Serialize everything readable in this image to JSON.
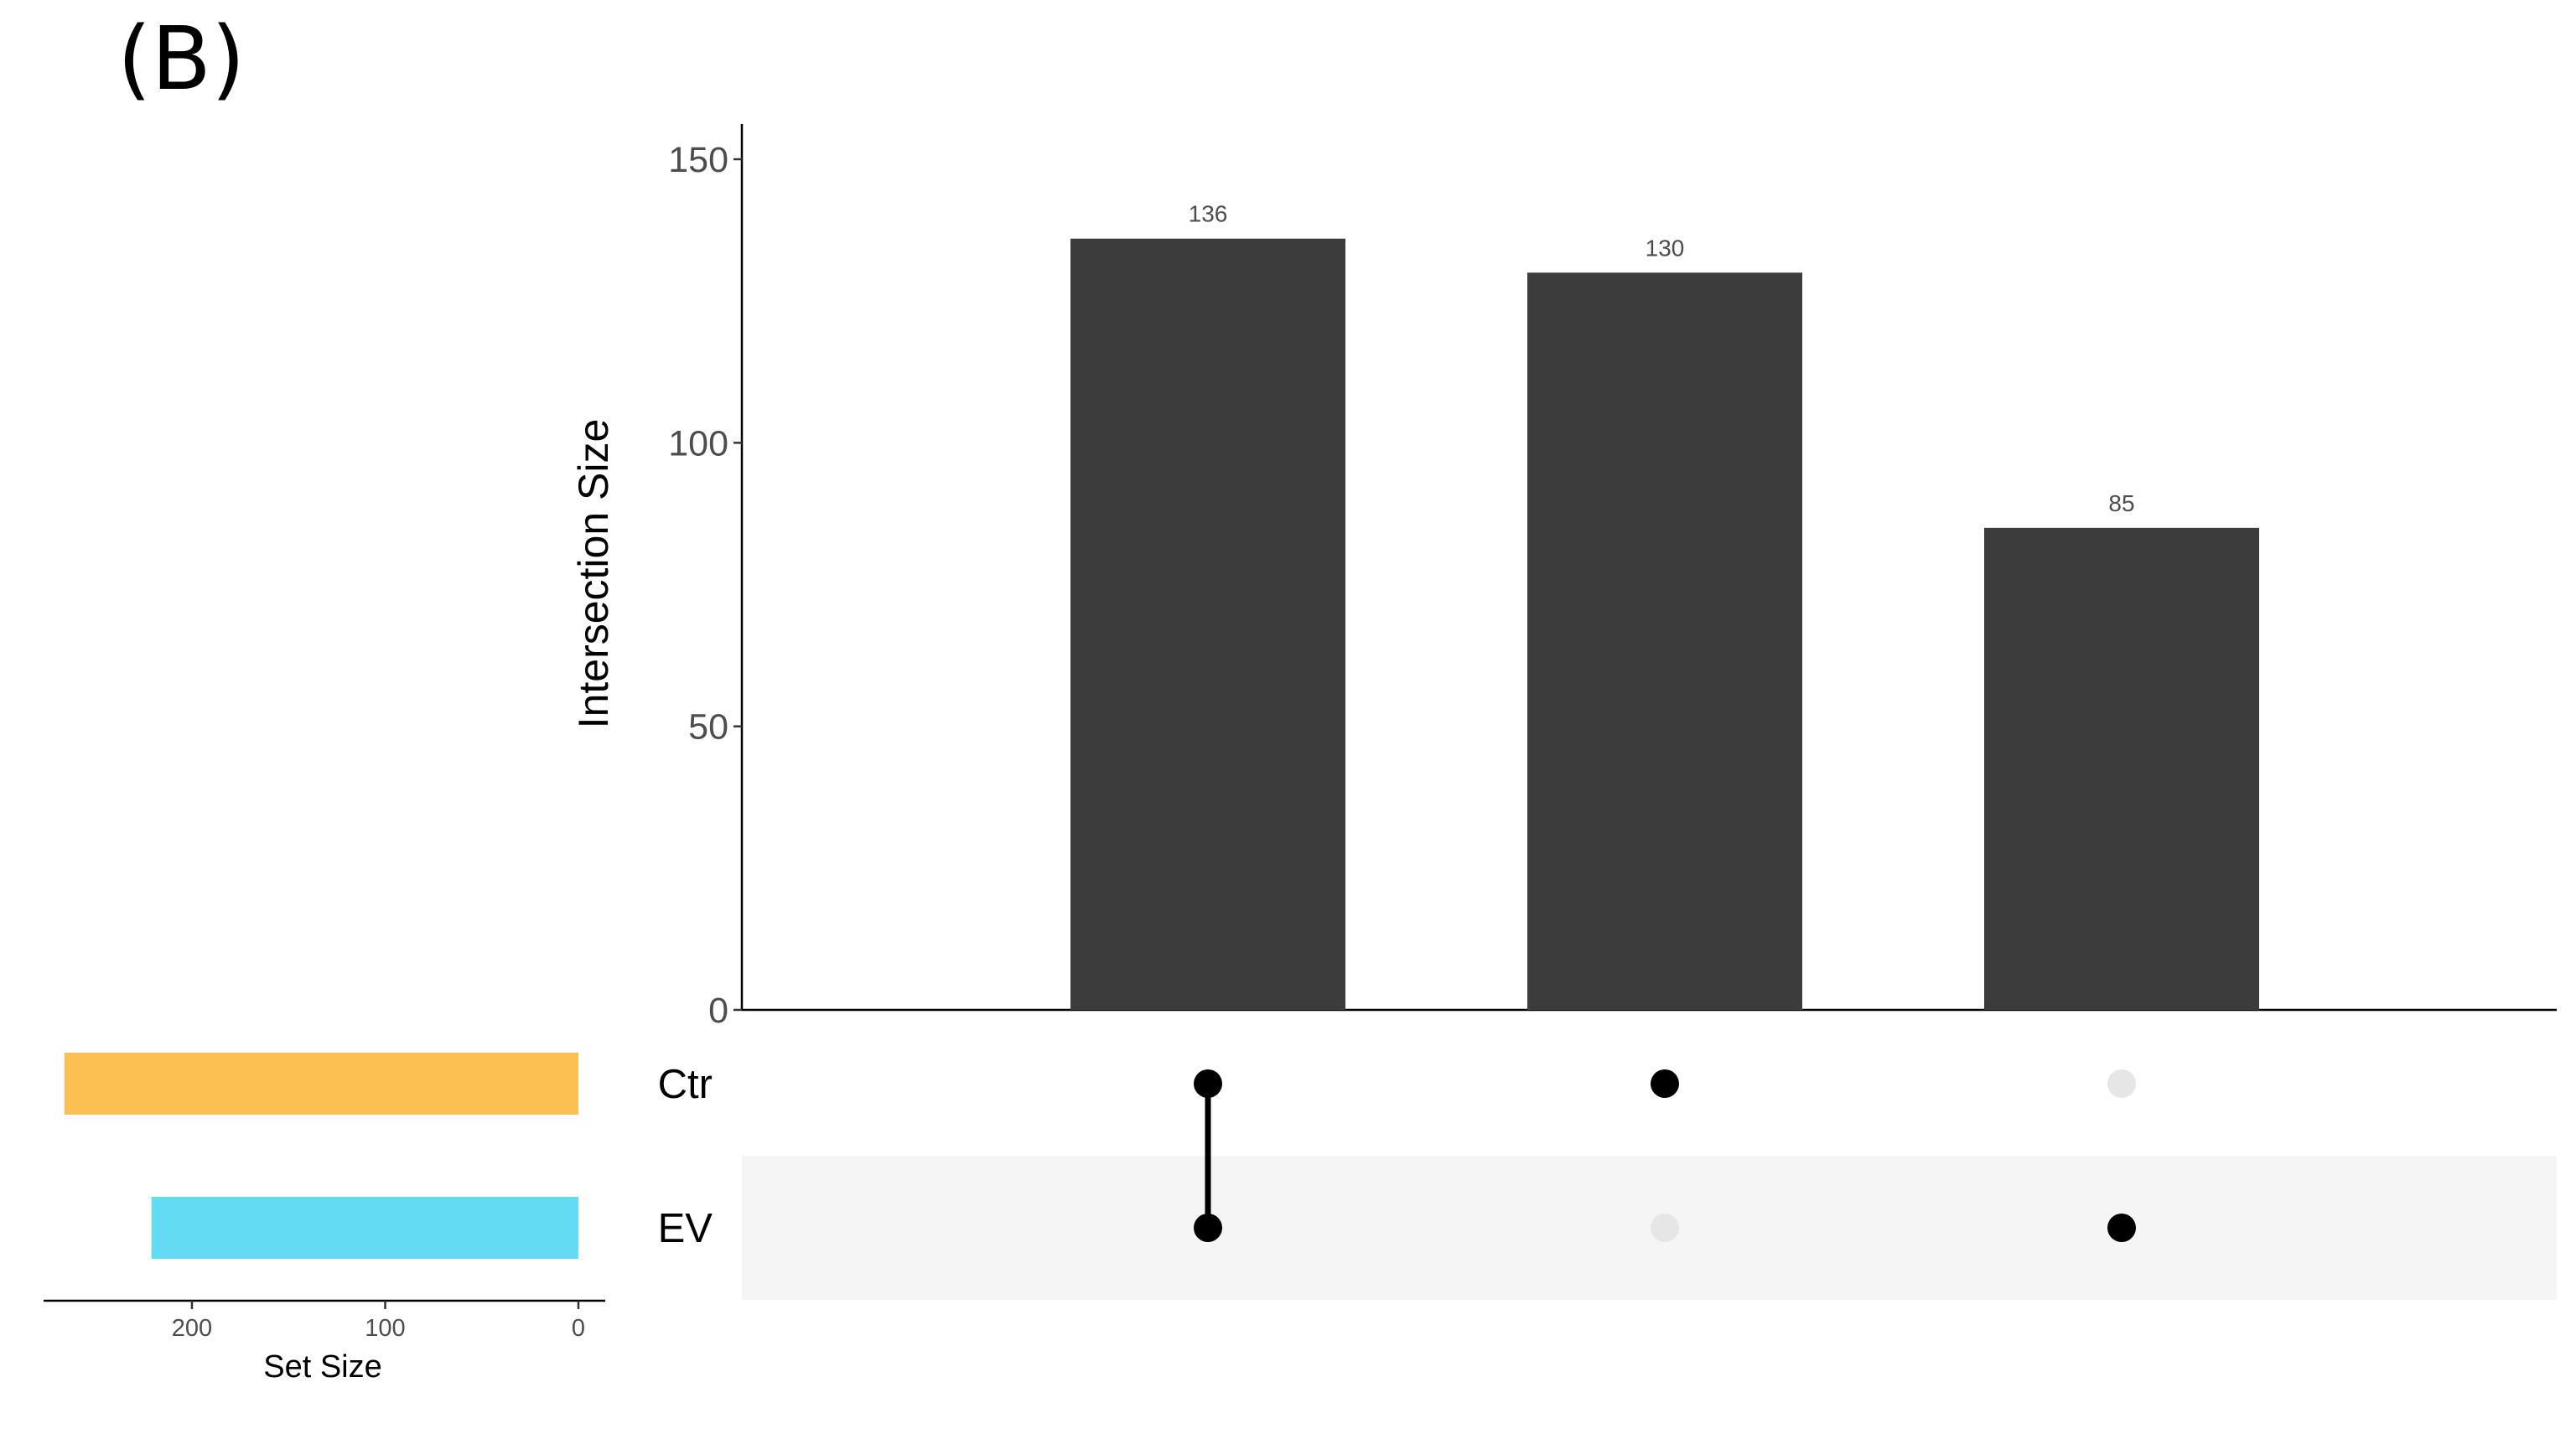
{
  "panel_label": "(B)",
  "chart_data": [
    {
      "type": "bar",
      "subtype": "upset-intersections",
      "ylabel": "Intersection Size",
      "ylim": [
        0,
        150
      ],
      "yticks": [
        0,
        50,
        100,
        150
      ],
      "intersections": [
        {
          "sets": [
            "Ctr",
            "EV"
          ],
          "value": 136,
          "label": "136"
        },
        {
          "sets": [
            "Ctr"
          ],
          "value": 130,
          "label": "130"
        },
        {
          "sets": [
            "EV"
          ],
          "value": 85,
          "label": "85"
        }
      ],
      "bar_color": "#3c3c3c",
      "data_labels": true
    },
    {
      "type": "bar",
      "subtype": "upset-set-sizes",
      "orientation": "horizontal",
      "xlabel": "Set Size",
      "xlim": [
        0,
        270
      ],
      "xticks": [
        200,
        100,
        0
      ],
      "xtick_labels": [
        "200",
        "100",
        "0"
      ],
      "reversed": true,
      "sets": [
        {
          "name": "Ctr",
          "value": 266,
          "color": "#fbbf52"
        },
        {
          "name": "EV",
          "value": 221,
          "color": "#63dbf3"
        }
      ]
    }
  ],
  "matrix": {
    "active_dot_color": "#000000",
    "inactive_dot_color": "#e6e6e6",
    "stripe_color": "#f5f5f5"
  }
}
